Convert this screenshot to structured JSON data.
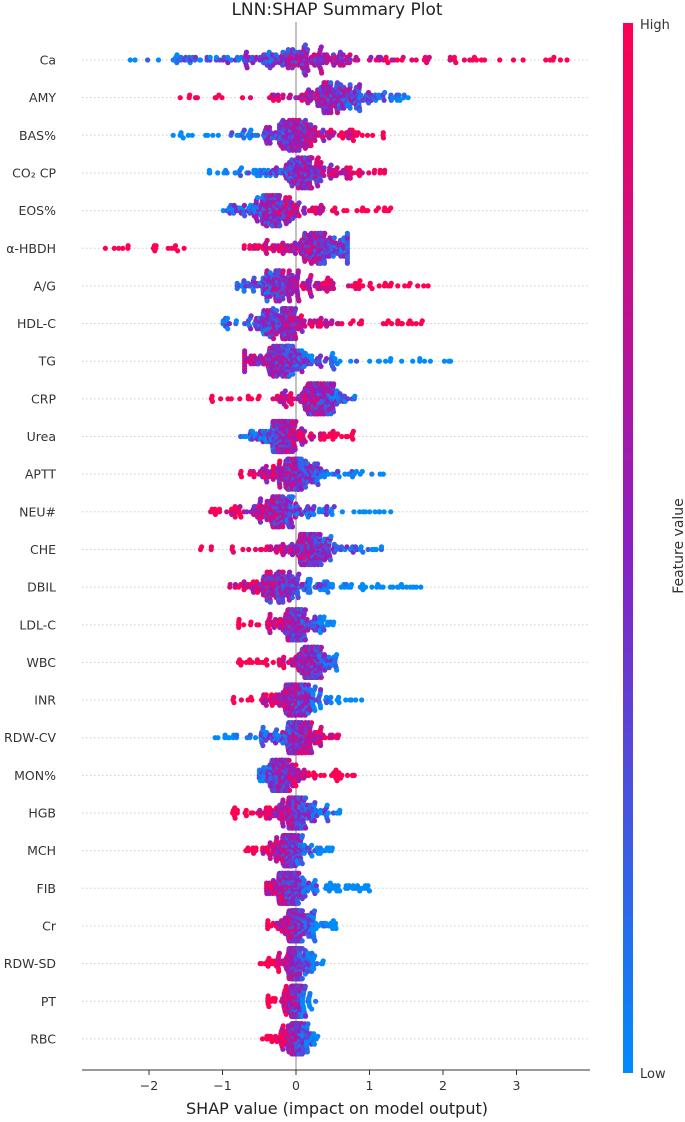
{
  "chart_data": {
    "type": "scatter",
    "subtype": "shap-beeswarm",
    "title": "LNN:SHAP Summary Plot",
    "xlabel": "SHAP value (impact on model output)",
    "xlim": [
      -2.8,
      3.9
    ],
    "xticks": [
      "−2",
      "−1",
      "0",
      "1",
      "2",
      "3"
    ],
    "xtick_values": [
      -2,
      -1,
      0,
      1,
      2,
      3
    ],
    "colorbar": {
      "high_label": "High",
      "low_label": "Low",
      "title": "Feature value",
      "high_color": "#ff0052",
      "low_color": "#008bfb"
    },
    "features": [
      {
        "name": "Ca",
        "xmin": -2.3,
        "xmax": 3.7,
        "center": 0,
        "low_side": "left",
        "spread": 1.6
      },
      {
        "name": "AMY",
        "xmin": -1.7,
        "xmax": 1.6,
        "center": 0.5,
        "low_side": "right",
        "spread": 0.9
      },
      {
        "name": "BAS%",
        "xmin": -1.7,
        "xmax": 1.2,
        "center": 0,
        "low_side": "left",
        "spread": 0.9
      },
      {
        "name": "CO₂ CP",
        "xmin": -1.2,
        "xmax": 1.3,
        "center": 0.1,
        "low_side": "left",
        "spread": 0.9
      },
      {
        "name": "EOS%",
        "xmin": -1.0,
        "xmax": 1.3,
        "center": -0.3,
        "low_side": "left",
        "spread": 0.9
      },
      {
        "name": "α-HBDH",
        "xmin": -2.6,
        "xmax": 0.7,
        "center": 0.3,
        "low_side": "right",
        "spread": 0.9
      },
      {
        "name": "A/G",
        "xmin": -0.8,
        "xmax": 1.8,
        "center": -0.2,
        "low_side": "left",
        "spread": 0.9
      },
      {
        "name": "HDL-C",
        "xmin": -1.0,
        "xmax": 1.9,
        "center": -0.2,
        "low_side": "left",
        "spread": 0.9
      },
      {
        "name": "TG",
        "xmin": -0.7,
        "xmax": 2.2,
        "center": -0.2,
        "low_side": "right",
        "spread": 0.9
      },
      {
        "name": "CRP",
        "xmin": -1.2,
        "xmax": 0.8,
        "center": 0.3,
        "low_side": "right",
        "spread": 0.9
      },
      {
        "name": "Urea",
        "xmin": -0.8,
        "xmax": 0.8,
        "center": -0.2,
        "low_side": "left",
        "spread": 0.9
      },
      {
        "name": "APTT",
        "xmin": -1.0,
        "xmax": 1.2,
        "center": 0,
        "low_side": "right",
        "spread": 0.9
      },
      {
        "name": "NEU#",
        "xmin": -1.2,
        "xmax": 1.3,
        "center": -0.2,
        "low_side": "right",
        "spread": 0.9
      },
      {
        "name": "CHE",
        "xmin": -1.4,
        "xmax": 1.2,
        "center": 0.2,
        "low_side": "right",
        "spread": 0.9
      },
      {
        "name": "DBIL",
        "xmin": -0.9,
        "xmax": 1.7,
        "center": -0.2,
        "low_side": "right",
        "spread": 0.9
      },
      {
        "name": "LDL-C",
        "xmin": -0.8,
        "xmax": 0.6,
        "center": 0,
        "low_side": "right",
        "spread": 0.9
      },
      {
        "name": "WBC",
        "xmin": -0.8,
        "xmax": 0.6,
        "center": 0.2,
        "low_side": "right",
        "spread": 0.9
      },
      {
        "name": "INR",
        "xmin": -0.9,
        "xmax": 0.9,
        "center": 0,
        "low_side": "right",
        "spread": 0.9
      },
      {
        "name": "RDW-CV",
        "xmin": -1.2,
        "xmax": 0.6,
        "center": 0,
        "low_side": "left",
        "spread": 0.9
      },
      {
        "name": "MON%",
        "xmin": -0.5,
        "xmax": 0.8,
        "center": -0.2,
        "low_side": "left",
        "spread": 0.9
      },
      {
        "name": "HGB",
        "xmin": -0.9,
        "xmax": 0.7,
        "center": 0,
        "low_side": "right",
        "spread": 0.9
      },
      {
        "name": "MCH",
        "xmin": -0.7,
        "xmax": 0.5,
        "center": -0.1,
        "low_side": "right",
        "spread": 0.9
      },
      {
        "name": "FIB",
        "xmin": -0.4,
        "xmax": 1.0,
        "center": -0.1,
        "low_side": "right",
        "spread": 0.9
      },
      {
        "name": "Cr",
        "xmin": -0.4,
        "xmax": 0.6,
        "center": 0,
        "low_side": "right",
        "spread": 0.9
      },
      {
        "name": "RDW-SD",
        "xmin": -0.5,
        "xmax": 0.4,
        "center": 0,
        "low_side": "right",
        "spread": 0.9
      },
      {
        "name": "PT",
        "xmin": -0.4,
        "xmax": 0.3,
        "center": 0,
        "low_side": "right",
        "spread": 0.9
      },
      {
        "name": "RBC",
        "xmin": -0.5,
        "xmax": 0.3,
        "center": 0,
        "low_side": "right",
        "spread": 0.9
      }
    ]
  }
}
